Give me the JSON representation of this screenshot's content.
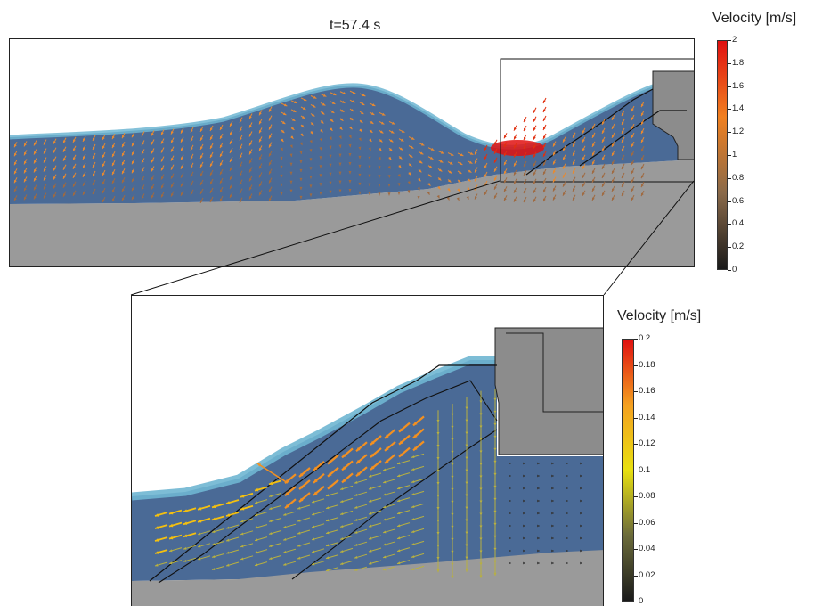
{
  "top_plot": {
    "title": "t=57.4 s"
  },
  "colorbar_top": {
    "title": "Velocity [m/s]",
    "ticks": [
      "2",
      "1.8",
      "1.6",
      "1.4",
      "1.2",
      "1",
      "0.8",
      "0.6",
      "0.4",
      "0.2",
      "0"
    ],
    "max": 2,
    "min": 0,
    "colors": [
      "#1a1a1a",
      "#8a6a4a",
      "#f08020",
      "#e01010"
    ]
  },
  "colorbar_bottom": {
    "title": "Velocity [m/s]",
    "ticks": [
      "0.2",
      "0.18",
      "0.16",
      "0.14",
      "0.12",
      "0.1",
      "0.08",
      "0.06",
      "0.04",
      "0.02",
      "0"
    ],
    "max": 0.2,
    "min": 0,
    "colors": [
      "#1a1a1a",
      "#6b6b3a",
      "#e8e010",
      "#f4a020",
      "#e01010"
    ]
  },
  "colors": {
    "water": "#4a6a96",
    "water_surface": "#6fb6d2",
    "ground": "#9a9a9a",
    "structure": "#8c8c8c"
  },
  "chart_data": [
    {
      "type": "heatmap",
      "title": "t=57.4 s",
      "colorbar_label": "Velocity [m/s]",
      "colorbar_range": [
        0,
        2
      ],
      "note_values": "velocity vector field over wave; peak near breaking zone",
      "peak_velocity": 1.9
    },
    {
      "type": "heatmap",
      "title": "",
      "colorbar_label": "Velocity [m/s]",
      "colorbar_range": [
        0,
        0.2
      ],
      "peak_velocity": 0.16
    }
  ]
}
